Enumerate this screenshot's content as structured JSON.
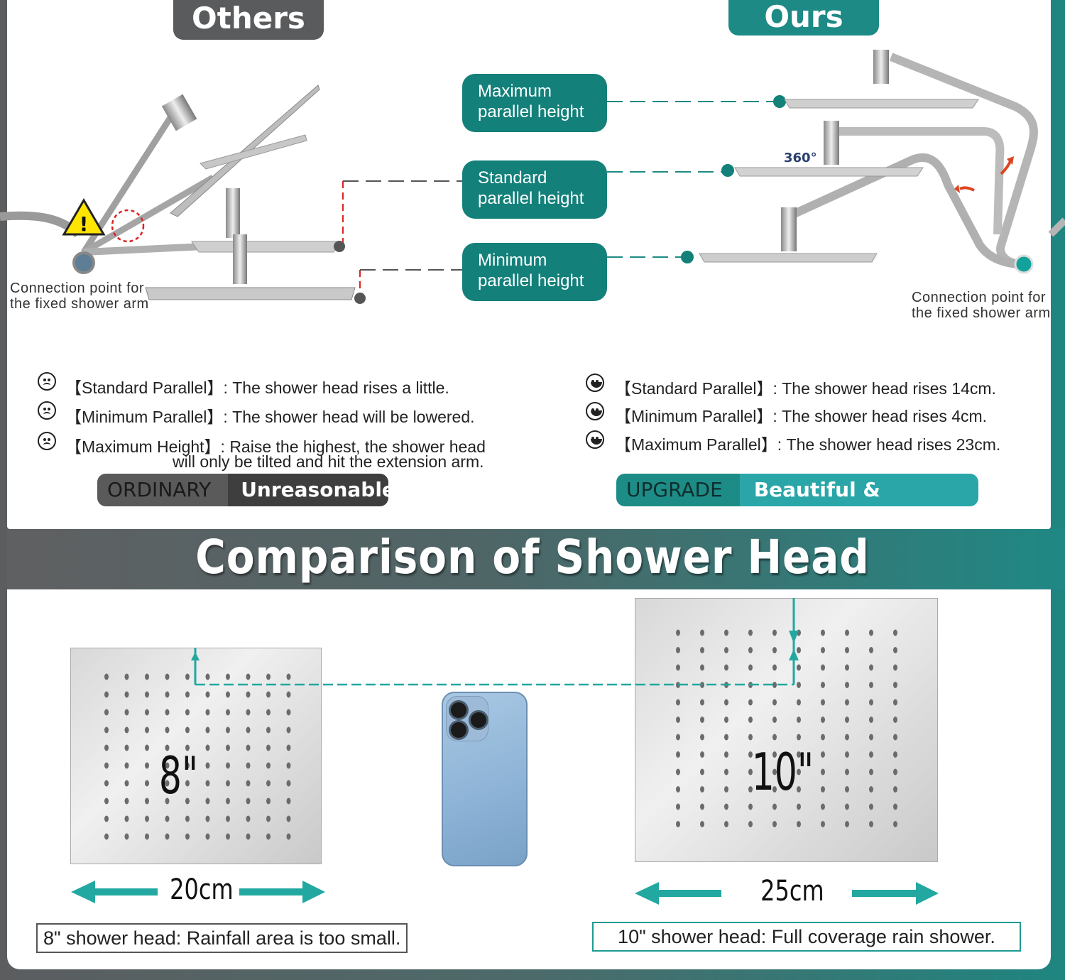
{
  "tabs": {
    "others": "Others",
    "ours": "Ours"
  },
  "heights": {
    "max": [
      "Maximum",
      "parallel height"
    ],
    "std": [
      "Standard",
      "parallel height"
    ],
    "min": [
      "Minimum",
      "parallel height"
    ]
  },
  "others": {
    "conn": [
      "Connection point for",
      "the fixed shower arm"
    ],
    "rows": [
      {
        "tag": "【Standard Parallel】",
        "text": ": The shower head rises a little."
      },
      {
        "tag": "【Minimum Parallel】",
        "text": ": The shower head will be lowered."
      },
      {
        "tag": "【Maximum Height】",
        "text": ": Raise the highest, the shower head",
        "text2": "will only be tilted and hit the extension arm."
      }
    ],
    "badge_left": "ORDINARY",
    "badge_right": "Unreasonable"
  },
  "ours": {
    "conn": [
      "Connection point for",
      "the fixed shower arm"
    ],
    "rotation": "360°",
    "rows": [
      {
        "tag": "【Standard Parallel】",
        "text": ": The shower head rises 14cm."
      },
      {
        "tag": "【Minimum Parallel】",
        "text": ": The shower head rises 4cm."
      },
      {
        "tag": "【Maximum Parallel】",
        "text": ": The shower head rises 23cm."
      }
    ],
    "badge_left": "UPGRADE",
    "badge_right": "Beautiful & Practical"
  },
  "comparison": {
    "title": "Comparison of Shower Head",
    "small": {
      "size": "8\"",
      "width": "20cm",
      "caption": "8\" shower head: Rainfall area is too small."
    },
    "large": {
      "size": "10\"",
      "width": "25cm",
      "caption": "10\" shower head: Full coverage rain shower."
    }
  },
  "colors": {
    "teal": "#1d8a85",
    "gray": "#5a5b5c",
    "arrow": "#22a8a0"
  }
}
